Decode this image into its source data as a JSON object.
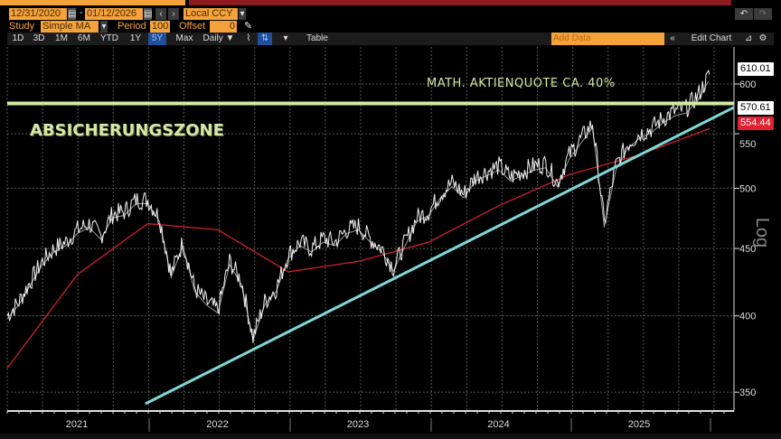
{
  "header": {
    "start_date": "12/31/2020",
    "date_sep": "-",
    "end_date": "01/12/2026",
    "currency": "Local CCY",
    "study_label": "Study",
    "study_value": "Simple MA",
    "period_label": "Period",
    "period_value": "100",
    "offset_label": "Offset",
    "offset_value": "0"
  },
  "toolbar": {
    "ranges": [
      "1D",
      "3D",
      "1M",
      "6M",
      "YTD",
      "1Y",
      "5Y",
      "Max"
    ],
    "selected_range": "5Y",
    "frequency": "Daily ▼",
    "table_label": "Table",
    "add_data_placeholder": "Add Data",
    "edit_chart_label": "Edit Chart"
  },
  "colors": {
    "price": "#f2f2f2",
    "ma_fast": "#9a9a9a",
    "ma_slow": "#d0202a",
    "horizontal": "#d4eaa0",
    "trend": "#7fd8d8",
    "accent": "#f4a23a"
  },
  "chart_data": {
    "type": "line",
    "scale": "log",
    "ylabel": "Log",
    "ylim": [
      340,
      625
    ],
    "yticks": [
      350,
      400,
      450,
      500,
      550,
      600
    ],
    "xticks": [
      "2021",
      "2022",
      "2023",
      "2024",
      "2025"
    ],
    "x_unit": "months since Jan 2021",
    "series": [
      {
        "name": "Price",
        "values": [
          400,
          410,
          425,
          440,
          450,
          455,
          465,
          470,
          460,
          478,
          480,
          490,
          490,
          475,
          430,
          455,
          420,
          410,
          404,
          440,
          425,
          385,
          410,
          420,
          445,
          455,
          450,
          458,
          455,
          465,
          468,
          458,
          450,
          435,
          455,
          475,
          480,
          495,
          505,
          495,
          510,
          515,
          520,
          510,
          515,
          520,
          522,
          505,
          530,
          545,
          560,
          470,
          520,
          540,
          550,
          555,
          565,
          572,
          575,
          588,
          610
        ]
      },
      {
        "name": "Slow MA",
        "x": [
          0,
          6,
          12,
          18,
          24,
          30,
          36,
          42,
          48,
          54,
          60
        ],
        "values": [
          365,
          430,
          470,
          465,
          432,
          440,
          455,
          485,
          512,
          530,
          555
        ]
      }
    ],
    "last_values": {
      "price": "610.01",
      "trend": "570.61",
      "ma": "554.44"
    },
    "annotations": [
      {
        "text": "MATH. AKTIENQUOTE CA. 40%",
        "type": "horizontal-line",
        "value": 580
      },
      {
        "text": "ABSICHERUNGSZONE",
        "type": "label"
      },
      {
        "type": "trendline",
        "from": {
          "x": 11.8,
          "value": 343
        },
        "to": {
          "x": 62,
          "value": 576
        }
      }
    ]
  }
}
